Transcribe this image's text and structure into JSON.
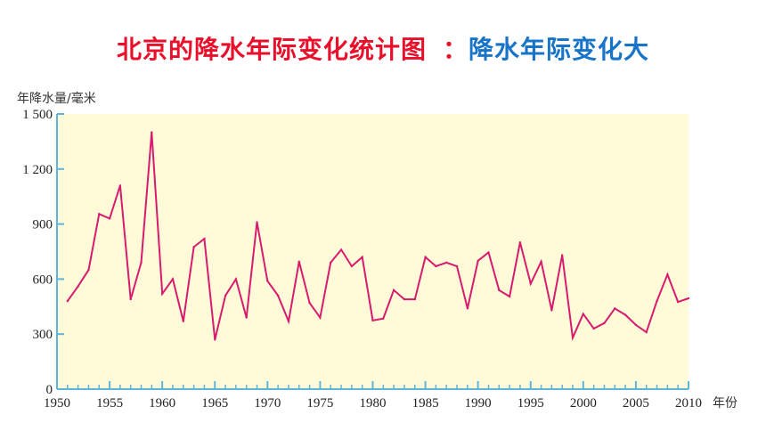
{
  "title_main": "北京的降水年际变化统计图",
  "title_sep": "：",
  "title_note": "降水年际变化大",
  "chart_data": {
    "type": "line",
    "ylabel": "年降水量/毫米",
    "xlabel": "年份",
    "ylim": [
      0,
      1500
    ],
    "xlim": [
      1950,
      2010
    ],
    "yticks": [
      0,
      300,
      600,
      900,
      1200,
      1500
    ],
    "ytick_labels": [
      "0",
      "300",
      "600",
      "900",
      "1 200",
      "1 500"
    ],
    "xticks": [
      1950,
      1955,
      1960,
      1965,
      1970,
      1975,
      1980,
      1985,
      1990,
      1995,
      2000,
      2005,
      2010
    ],
    "xtick_labels": [
      "1950",
      "1955",
      "1960",
      "1965",
      "1970",
      "1975",
      "1980",
      "1985",
      "1990",
      "1995",
      "2000",
      "2005",
      "2010"
    ],
    "series": [
      {
        "color": "#d81b6e",
        "x": [
          1951,
          1952,
          1953,
          1954,
          1955,
          1956,
          1957,
          1958,
          1959,
          1960,
          1961,
          1962,
          1963,
          1964,
          1965,
          1966,
          1967,
          1968,
          1969,
          1970,
          1971,
          1972,
          1973,
          1974,
          1975,
          1976,
          1977,
          1978,
          1979,
          1980,
          1981,
          1982,
          1983,
          1984,
          1985,
          1986,
          1987,
          1988,
          1989,
          1990,
          1991,
          1992,
          1993,
          1994,
          1995,
          1996,
          1997,
          1998,
          1999,
          2000,
          2001,
          2002,
          2003,
          2004,
          2005,
          2006,
          2007,
          2008,
          2009,
          2010
        ],
        "values": [
          480,
          560,
          650,
          955,
          930,
          1110,
          490,
          690,
          1400,
          520,
          600,
          370,
          775,
          820,
          270,
          510,
          600,
          390,
          910,
          590,
          510,
          370,
          695,
          470,
          390,
          690,
          760,
          670,
          720,
          375,
          385,
          540,
          490,
          490,
          720,
          670,
          690,
          670,
          440,
          700,
          745,
          540,
          505,
          800,
          575,
          695,
          430,
          730,
          280,
          410,
          330,
          360,
          440,
          405,
          350,
          310,
          480,
          625,
          475,
          495
        ]
      }
    ],
    "grid": false,
    "background_color": "#fffbd9",
    "axis_color": "#5fb4da"
  }
}
